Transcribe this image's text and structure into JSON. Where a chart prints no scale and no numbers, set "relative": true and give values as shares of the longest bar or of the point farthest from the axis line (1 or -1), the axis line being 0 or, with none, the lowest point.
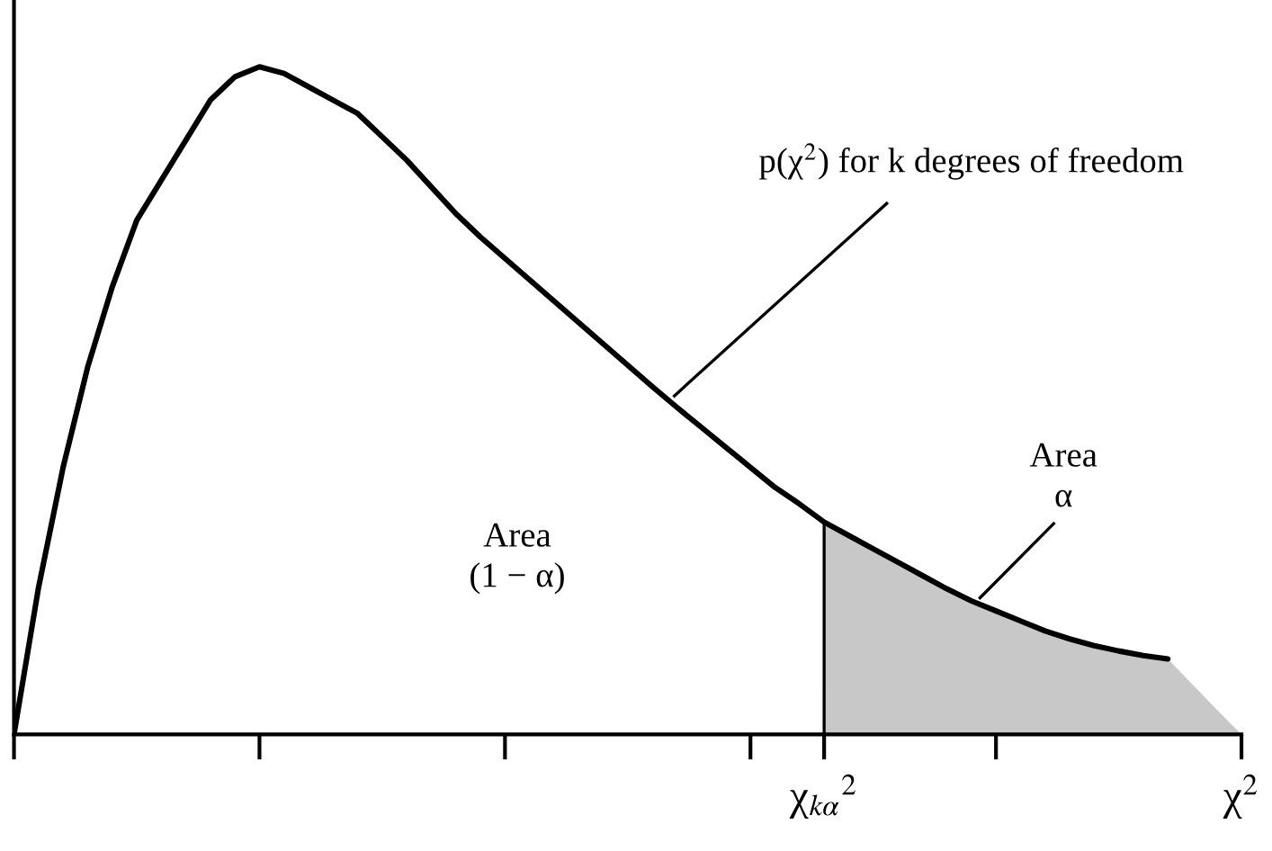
{
  "chart_data": {
    "type": "line",
    "relative": true,
    "categories": [
      null,
      null,
      null,
      null,
      null,
      null,
      null,
      null,
      null,
      null,
      null,
      null,
      null,
      null,
      null,
      null,
      null,
      null,
      null,
      null,
      null,
      null,
      null,
      null,
      null,
      null,
      null,
      null,
      null,
      null,
      null,
      null,
      null,
      "χ$_{kα}$$^{2}$",
      null,
      null,
      null,
      null,
      null,
      null,
      null,
      null,
      null,
      null,
      null,
      null,
      null,
      null,
      null,
      null,
      "χ$^{2}$"
    ],
    "series": [
      {
        "color": "#000000",
        "values": [
          0,
          0.22,
          0.4,
          0.55,
          0.67,
          0.77,
          0.83,
          0.89,
          0.95,
          0.985,
          1.0,
          0.99,
          0.97,
          0.95,
          0.93,
          0.895,
          0.86,
          0.82,
          0.78,
          0.745,
          0.713,
          0.681,
          0.649,
          0.617,
          0.585,
          0.553,
          0.521,
          0.49,
          0.46,
          0.43,
          0.4,
          0.37,
          0.345,
          0.318,
          0.298,
          0.278,
          0.258,
          0.238,
          0.218,
          0.2,
          0.185,
          0.17,
          0.155,
          0.143,
          0.133,
          0.125,
          0.118,
          0.113,
          null,
          null,
          null
        ]
      },
      {
        "type": "area",
        "color": "#c8c8c8",
        "values": [
          null,
          null,
          null,
          null,
          null,
          null,
          null,
          null,
          null,
          null,
          null,
          null,
          null,
          null,
          null,
          null,
          null,
          null,
          null,
          null,
          null,
          null,
          null,
          null,
          null,
          null,
          null,
          null,
          null,
          null,
          null,
          null,
          null,
          0.318,
          0.298,
          0.278,
          0.258,
          0.238,
          0.218,
          0.2,
          0.185,
          0.17,
          0.155,
          0.143,
          0.133,
          0.125,
          0.118,
          0.113,
          0.075,
          0.037,
          0
        ]
      }
    ],
    "annotations": [
      "p(χ$^{2}$) for k degrees of freedom",
      "Area\n(1 − α)",
      "Area\nα"
    ],
    "ref_lines": [
      {
        "axis": "x",
        "value": "χ$_{kα}$$^{2}$",
        "color": "#000000"
      }
    ],
    "grid": false,
    "legend": false
  }
}
